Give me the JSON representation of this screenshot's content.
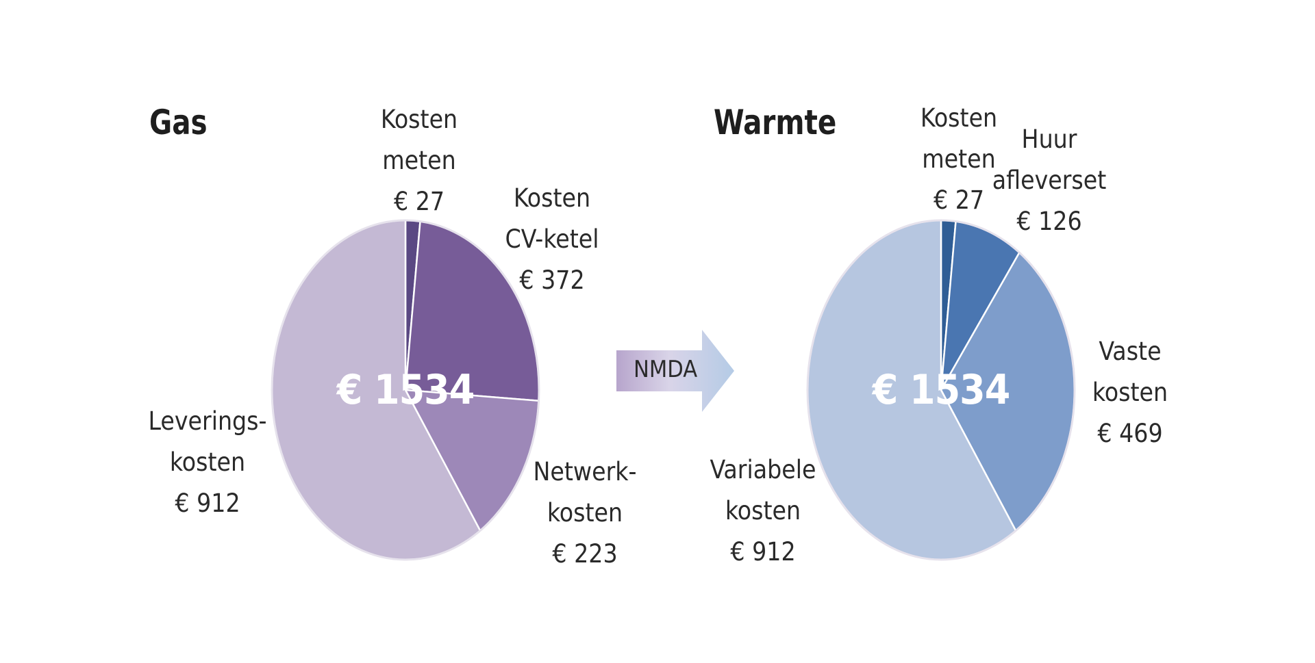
{
  "arrow": {
    "label": "NMDA"
  },
  "chart_data": [
    {
      "type": "pie",
      "title": "Gas",
      "total_label": "€ 1534",
      "slices": [
        {
          "name_lines": [
            "Kosten",
            "meten"
          ],
          "value_label": "€ 27",
          "value": 27,
          "color": "#5a4883"
        },
        {
          "name_lines": [
            "Kosten",
            "CV-ketel"
          ],
          "value_label": "€ 372",
          "value": 372,
          "color": "#775c98"
        },
        {
          "name_lines": [
            "Netwerk-",
            "kosten"
          ],
          "value_label": "€ 223",
          "value": 223,
          "color": "#9d88b8"
        },
        {
          "name_lines": [
            "Leverings-",
            "kosten"
          ],
          "value_label": "€ 912",
          "value": 912,
          "color": "#c4b9d4"
        }
      ]
    },
    {
      "type": "pie",
      "title": "Warmte",
      "total_label": "€ 1534",
      "slices": [
        {
          "name_lines": [
            "Kosten",
            "meten"
          ],
          "value_label": "€ 27",
          "value": 27,
          "color": "#2f5d95"
        },
        {
          "name_lines": [
            "Huur",
            "afleverset"
          ],
          "value_label": "€ 126",
          "value": 126,
          "color": "#4a76b1"
        },
        {
          "name_lines": [
            "Vaste",
            "kosten"
          ],
          "value_label": "€ 469",
          "value": 469,
          "color": "#7e9dcb"
        },
        {
          "name_lines": [
            "Variabele",
            "kosten"
          ],
          "value_label": "€ 912",
          "value": 912,
          "color": "#b6c6e0"
        }
      ]
    }
  ]
}
